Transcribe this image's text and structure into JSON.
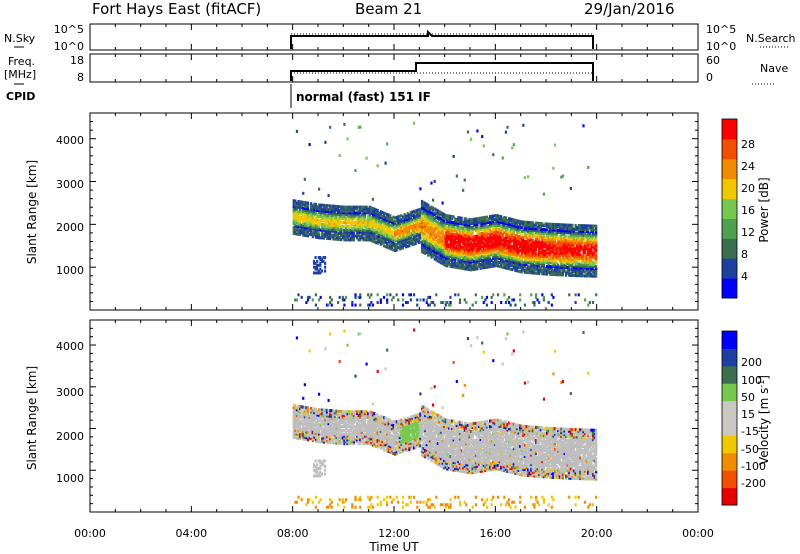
{
  "header": {
    "station": "Fort Hays East (fitACF)",
    "beam": "Beam 21",
    "date": "29/Jan/2016"
  },
  "noise_panel": {
    "left_label": "N.Sky",
    "right_label": "N.Search",
    "left_ticks": [
      "10^5",
      "10^0"
    ],
    "right_ticks": [
      "10^5",
      "10^0"
    ]
  },
  "freq_panel": {
    "left_label_line1": "Freq.",
    "left_label_line2": "[MHz]",
    "right_label": "Nave",
    "left_ticks": [
      "18",
      "8"
    ],
    "right_ticks": [
      "60",
      "0"
    ]
  },
  "cpid": {
    "label": "CPID",
    "program": "normal (fast) 151 IF"
  },
  "x_axis": {
    "label": "Time UT",
    "ticks": [
      "00:00",
      "04:00",
      "08:00",
      "12:00",
      "16:00",
      "20:00",
      "00:00"
    ]
  },
  "colors": {
    "power_scale": [
      "#0000ff",
      "#1e40a0",
      "#3c6e50",
      "#50a050",
      "#78c850",
      "#f0c800",
      "#f08c00",
      "#f05000",
      "#ff0000"
    ],
    "velocity_scale": [
      "#e60000",
      "#f05000",
      "#f08c00",
      "#f0c800",
      "#c8c8c0",
      "#c8c8c0",
      "#78c850",
      "#3c6e50",
      "#1e40a0",
      "#0000ff"
    ],
    "ground_scatter": "#bebebe"
  },
  "chart_data": [
    {
      "type": "heatmap",
      "title": "",
      "xlabel": "",
      "ylabel": "Slant Range [km]",
      "ylim": [
        0,
        4600
      ],
      "yticks": [
        "1000",
        "2000",
        "3000",
        "4000"
      ],
      "colorbar": {
        "label": "Power [dB]",
        "ticks": [
          "4",
          "8",
          "12",
          "16",
          "20",
          "24",
          "28"
        ],
        "range": [
          0,
          32
        ]
      },
      "x_time_hours": [
        8,
        9,
        10,
        11,
        12,
        13,
        14,
        15,
        16,
        17,
        18,
        19,
        20
      ],
      "echo_center_km": [
        2200,
        2100,
        2050,
        2050,
        1800,
        2000,
        1650,
        1550,
        1650,
        1500,
        1450,
        1420,
        1400
      ],
      "echo_peak_power_db": [
        20,
        20,
        20,
        20,
        24,
        24,
        32,
        32,
        32,
        32,
        30,
        30,
        30
      ]
    },
    {
      "type": "heatmap",
      "title": "",
      "xlabel": "Time UT",
      "ylabel": "Slant Range [km]",
      "ylim": [
        0,
        4600
      ],
      "yticks": [
        "1000",
        "2000",
        "3000",
        "4000"
      ],
      "colorbar": {
        "label": "Velocity [m s",
        "label_sup": "-1",
        "label_end": "]",
        "ticks": [
          "-200",
          "-100",
          "-50",
          "-15",
          "15",
          "50",
          "100",
          "200"
        ],
        "range": [
          -250,
          250
        ]
      },
      "x_time_hours": [
        8,
        9,
        10,
        11,
        12,
        13,
        14,
        15,
        16,
        17,
        18,
        19,
        20
      ],
      "echo_center_km": [
        2200,
        2100,
        2050,
        2050,
        1800,
        2000,
        1650,
        1550,
        1650,
        1500,
        1450,
        1420,
        1400
      ],
      "echo_velocity_ms": [
        0,
        0,
        0,
        0,
        30,
        0,
        0,
        0,
        0,
        0,
        0,
        0,
        0
      ]
    }
  ]
}
